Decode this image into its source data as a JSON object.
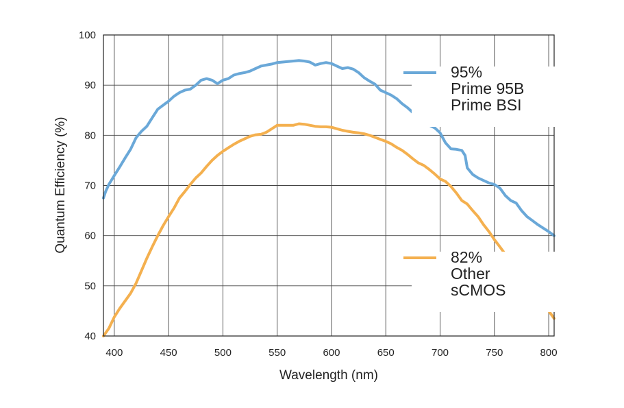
{
  "chart_data": {
    "type": "line",
    "xlabel": "Wavelength (nm)",
    "ylabel": "Quantum Efficiency (%)",
    "xlim": [
      390,
      805
    ],
    "ylim": [
      40,
      100
    ],
    "xticks": [
      "400",
      "450",
      "500",
      "550",
      "600",
      "650",
      "700",
      "750",
      "800"
    ],
    "yticks": [
      "40",
      "50",
      "60",
      "70",
      "80",
      "90",
      "100"
    ],
    "grid": true,
    "legend_position": "right",
    "series": [
      {
        "legend_lines": [
          "95%",
          "Prime 95B",
          "Prime BSI"
        ],
        "color": "#6aa8d8",
        "points": [
          [
            390,
            67.5
          ],
          [
            392,
            68.8
          ],
          [
            395,
            70.2
          ],
          [
            400,
            72.0
          ],
          [
            403,
            73.0
          ],
          [
            405,
            73.7
          ],
          [
            410,
            75.5
          ],
          [
            415,
            77.2
          ],
          [
            420,
            79.5
          ],
          [
            425,
            80.8
          ],
          [
            430,
            81.8
          ],
          [
            435,
            83.5
          ],
          [
            440,
            85.2
          ],
          [
            445,
            86.0
          ],
          [
            450,
            86.8
          ],
          [
            455,
            87.8
          ],
          [
            460,
            88.5
          ],
          [
            465,
            89.0
          ],
          [
            470,
            89.2
          ],
          [
            475,
            90.0
          ],
          [
            480,
            91.0
          ],
          [
            485,
            91.3
          ],
          [
            490,
            91.0
          ],
          [
            495,
            90.3
          ],
          [
            500,
            91.0
          ],
          [
            505,
            91.3
          ],
          [
            510,
            92.0
          ],
          [
            515,
            92.3
          ],
          [
            520,
            92.5
          ],
          [
            525,
            92.8
          ],
          [
            530,
            93.3
          ],
          [
            535,
            93.8
          ],
          [
            540,
            94.0
          ],
          [
            545,
            94.2
          ],
          [
            550,
            94.5
          ],
          [
            555,
            94.6
          ],
          [
            560,
            94.7
          ],
          [
            565,
            94.8
          ],
          [
            570,
            94.9
          ],
          [
            575,
            94.8
          ],
          [
            580,
            94.6
          ],
          [
            585,
            94.0
          ],
          [
            590,
            94.3
          ],
          [
            595,
            94.5
          ],
          [
            600,
            94.3
          ],
          [
            605,
            93.8
          ],
          [
            610,
            93.3
          ],
          [
            615,
            93.5
          ],
          [
            620,
            93.2
          ],
          [
            625,
            92.5
          ],
          [
            630,
            91.5
          ],
          [
            635,
            90.8
          ],
          [
            640,
            90.2
          ],
          [
            645,
            89.0
          ],
          [
            650,
            88.5
          ],
          [
            655,
            88.0
          ],
          [
            660,
            87.3
          ],
          [
            665,
            86.3
          ],
          [
            670,
            85.5
          ],
          [
            675,
            84.5
          ],
          [
            680,
            83.5
          ],
          [
            685,
            82.5
          ],
          [
            690,
            82.0
          ],
          [
            695,
            81.5
          ],
          [
            700,
            80.5
          ],
          [
            705,
            78.5
          ],
          [
            710,
            77.3
          ],
          [
            715,
            77.2
          ],
          [
            720,
            77.0
          ],
          [
            723,
            76.0
          ],
          [
            725,
            73.5
          ],
          [
            730,
            72.2
          ],
          [
            735,
            71.5
          ],
          [
            740,
            71.0
          ],
          [
            745,
            70.5
          ],
          [
            750,
            70.2
          ],
          [
            755,
            69.5
          ],
          [
            760,
            68.0
          ],
          [
            765,
            67.0
          ],
          [
            770,
            66.5
          ],
          [
            775,
            65.0
          ],
          [
            780,
            63.8
          ],
          [
            785,
            63.0
          ],
          [
            790,
            62.2
          ],
          [
            795,
            61.5
          ],
          [
            800,
            60.8
          ],
          [
            805,
            60.0
          ]
        ]
      },
      {
        "legend_lines": [
          "82%",
          "Other",
          "sCMOS"
        ],
        "color": "#f4b04f",
        "points": [
          [
            390,
            40.0
          ],
          [
            395,
            41.5
          ],
          [
            400,
            43.8
          ],
          [
            405,
            45.5
          ],
          [
            410,
            47.0
          ],
          [
            415,
            48.5
          ],
          [
            420,
            50.5
          ],
          [
            425,
            53.0
          ],
          [
            430,
            55.5
          ],
          [
            435,
            57.8
          ],
          [
            440,
            60.0
          ],
          [
            445,
            62.0
          ],
          [
            450,
            63.8
          ],
          [
            455,
            65.5
          ],
          [
            460,
            67.5
          ],
          [
            465,
            68.8
          ],
          [
            470,
            70.2
          ],
          [
            475,
            71.5
          ],
          [
            480,
            72.5
          ],
          [
            485,
            73.8
          ],
          [
            490,
            75.0
          ],
          [
            495,
            76.0
          ],
          [
            500,
            76.8
          ],
          [
            505,
            77.5
          ],
          [
            510,
            78.2
          ],
          [
            515,
            78.8
          ],
          [
            520,
            79.3
          ],
          [
            525,
            79.8
          ],
          [
            530,
            80.1
          ],
          [
            535,
            80.2
          ],
          [
            540,
            80.6
          ],
          [
            545,
            81.3
          ],
          [
            550,
            82.0
          ],
          [
            555,
            82.0
          ],
          [
            560,
            82.0
          ],
          [
            565,
            82.0
          ],
          [
            570,
            82.3
          ],
          [
            575,
            82.2
          ],
          [
            580,
            82.0
          ],
          [
            585,
            81.8
          ],
          [
            590,
            81.7
          ],
          [
            595,
            81.7
          ],
          [
            600,
            81.6
          ],
          [
            605,
            81.3
          ],
          [
            610,
            81.0
          ],
          [
            615,
            80.8
          ],
          [
            620,
            80.6
          ],
          [
            625,
            80.5
          ],
          [
            630,
            80.3
          ],
          [
            635,
            80.0
          ],
          [
            640,
            79.6
          ],
          [
            645,
            79.2
          ],
          [
            650,
            78.8
          ],
          [
            655,
            78.3
          ],
          [
            660,
            77.6
          ],
          [
            665,
            77.0
          ],
          [
            670,
            76.2
          ],
          [
            675,
            75.3
          ],
          [
            680,
            74.5
          ],
          [
            685,
            74.0
          ],
          [
            690,
            73.2
          ],
          [
            695,
            72.3
          ],
          [
            700,
            71.3
          ],
          [
            705,
            70.8
          ],
          [
            710,
            69.8
          ],
          [
            715,
            68.5
          ],
          [
            720,
            67.0
          ],
          [
            725,
            66.3
          ],
          [
            730,
            65.0
          ],
          [
            735,
            63.8
          ],
          [
            740,
            62.2
          ],
          [
            745,
            60.8
          ],
          [
            750,
            59.2
          ],
          [
            755,
            57.8
          ],
          [
            760,
            56.3
          ],
          [
            765,
            55.0
          ],
          [
            770,
            53.5
          ],
          [
            775,
            52.2
          ],
          [
            780,
            50.8
          ],
          [
            785,
            49.5
          ],
          [
            790,
            48.0
          ],
          [
            795,
            46.5
          ],
          [
            800,
            45.0
          ],
          [
            805,
            43.5
          ]
        ]
      }
    ]
  }
}
